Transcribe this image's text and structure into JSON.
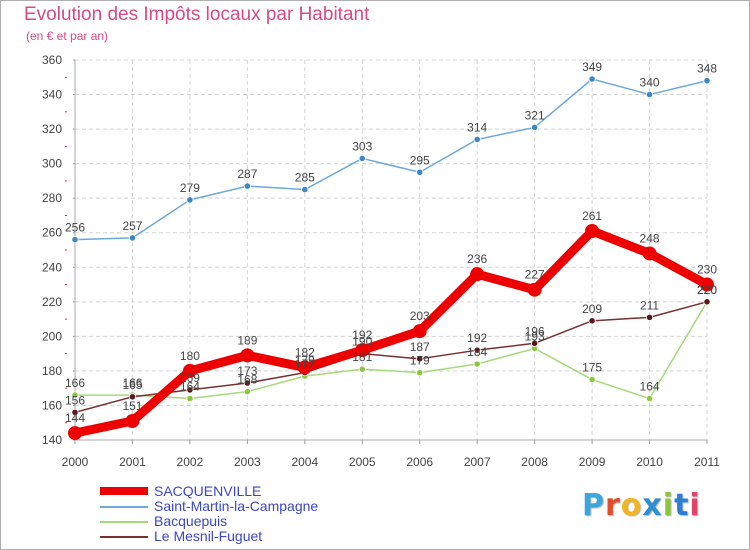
{
  "title": "Evolution des Impôts locaux par Habitant",
  "subtitle": "(en € et par an)",
  "brand": "Proxiti",
  "brand_colors": [
    "#3aa6dc",
    "#e24c2b",
    "#f0b51f",
    "#2d8fd0",
    "#8cc63f",
    "#2b7fd6",
    "#e2436b"
  ],
  "chart_data": {
    "type": "line",
    "title": "Evolution des Impôts locaux par Habitant",
    "subtitle": "(en € et par an)",
    "x": [
      "2000",
      "2001",
      "2002",
      "2003",
      "2004",
      "2005",
      "2006",
      "2007",
      "2008",
      "2009",
      "2010",
      "2011"
    ],
    "ylim": [
      140,
      360
    ],
    "yticks": [
      140,
      160,
      180,
      200,
      220,
      240,
      260,
      280,
      300,
      320,
      340,
      360
    ],
    "grid": true,
    "legend": "bottom-left",
    "series": [
      {
        "name": "Saint-Martin-la-Campagne",
        "color": "#6fa8dc",
        "marker": "#3d87c4",
        "values": [
          256,
          257,
          279,
          287,
          285,
          303,
          295,
          314,
          321,
          349,
          340,
          348
        ]
      },
      {
        "name": "Bacquepuis",
        "color": "#a6d97a",
        "marker": "#8cc63f",
        "values": [
          166,
          166,
          164,
          168,
          177,
          181,
          179,
          184,
          193,
          175,
          164,
          220
        ]
      },
      {
        "name": "Le Mesnil-Fuguet",
        "color": "#7a3030",
        "marker": "#5a1818",
        "values": [
          156,
          165,
          169,
          173,
          179,
          190,
          187,
          192,
          196,
          209,
          211,
          220
        ]
      },
      {
        "name": "SACQUENVILLE",
        "color": "#ee0000",
        "marker": "#ee0000",
        "values": [
          144,
          151,
          180,
          189,
          182,
          192,
          203,
          236,
          227,
          261,
          248,
          230
        ]
      }
    ]
  },
  "legend_items": [
    "SACQUENVILLE",
    "Saint-Martin-la-Campagne",
    "Bacquepuis",
    "Le Mesnil-Fuguet"
  ]
}
